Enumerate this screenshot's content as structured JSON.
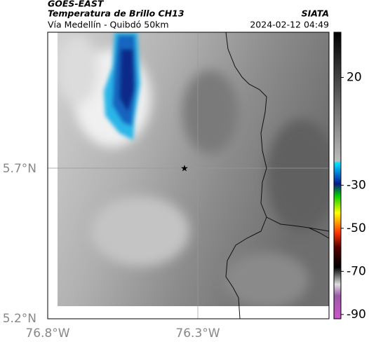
{
  "header": {
    "source": "GOES-EAST",
    "product": "Temperatura de Brillo CH13",
    "agency": "SIATA",
    "route": "Vía Medellín - Quibdó 50km",
    "timestamp": "2024-02-12 04:49"
  },
  "map": {
    "lat_labels": [
      "5.7°N",
      "5.2°N"
    ],
    "lon_labels": [
      "76.8°W",
      "76.3°W"
    ]
  },
  "colorbar": {
    "lim": [
      -92,
      41
    ],
    "ticks": [
      20,
      -30,
      -50,
      -70,
      -90
    ]
  }
}
